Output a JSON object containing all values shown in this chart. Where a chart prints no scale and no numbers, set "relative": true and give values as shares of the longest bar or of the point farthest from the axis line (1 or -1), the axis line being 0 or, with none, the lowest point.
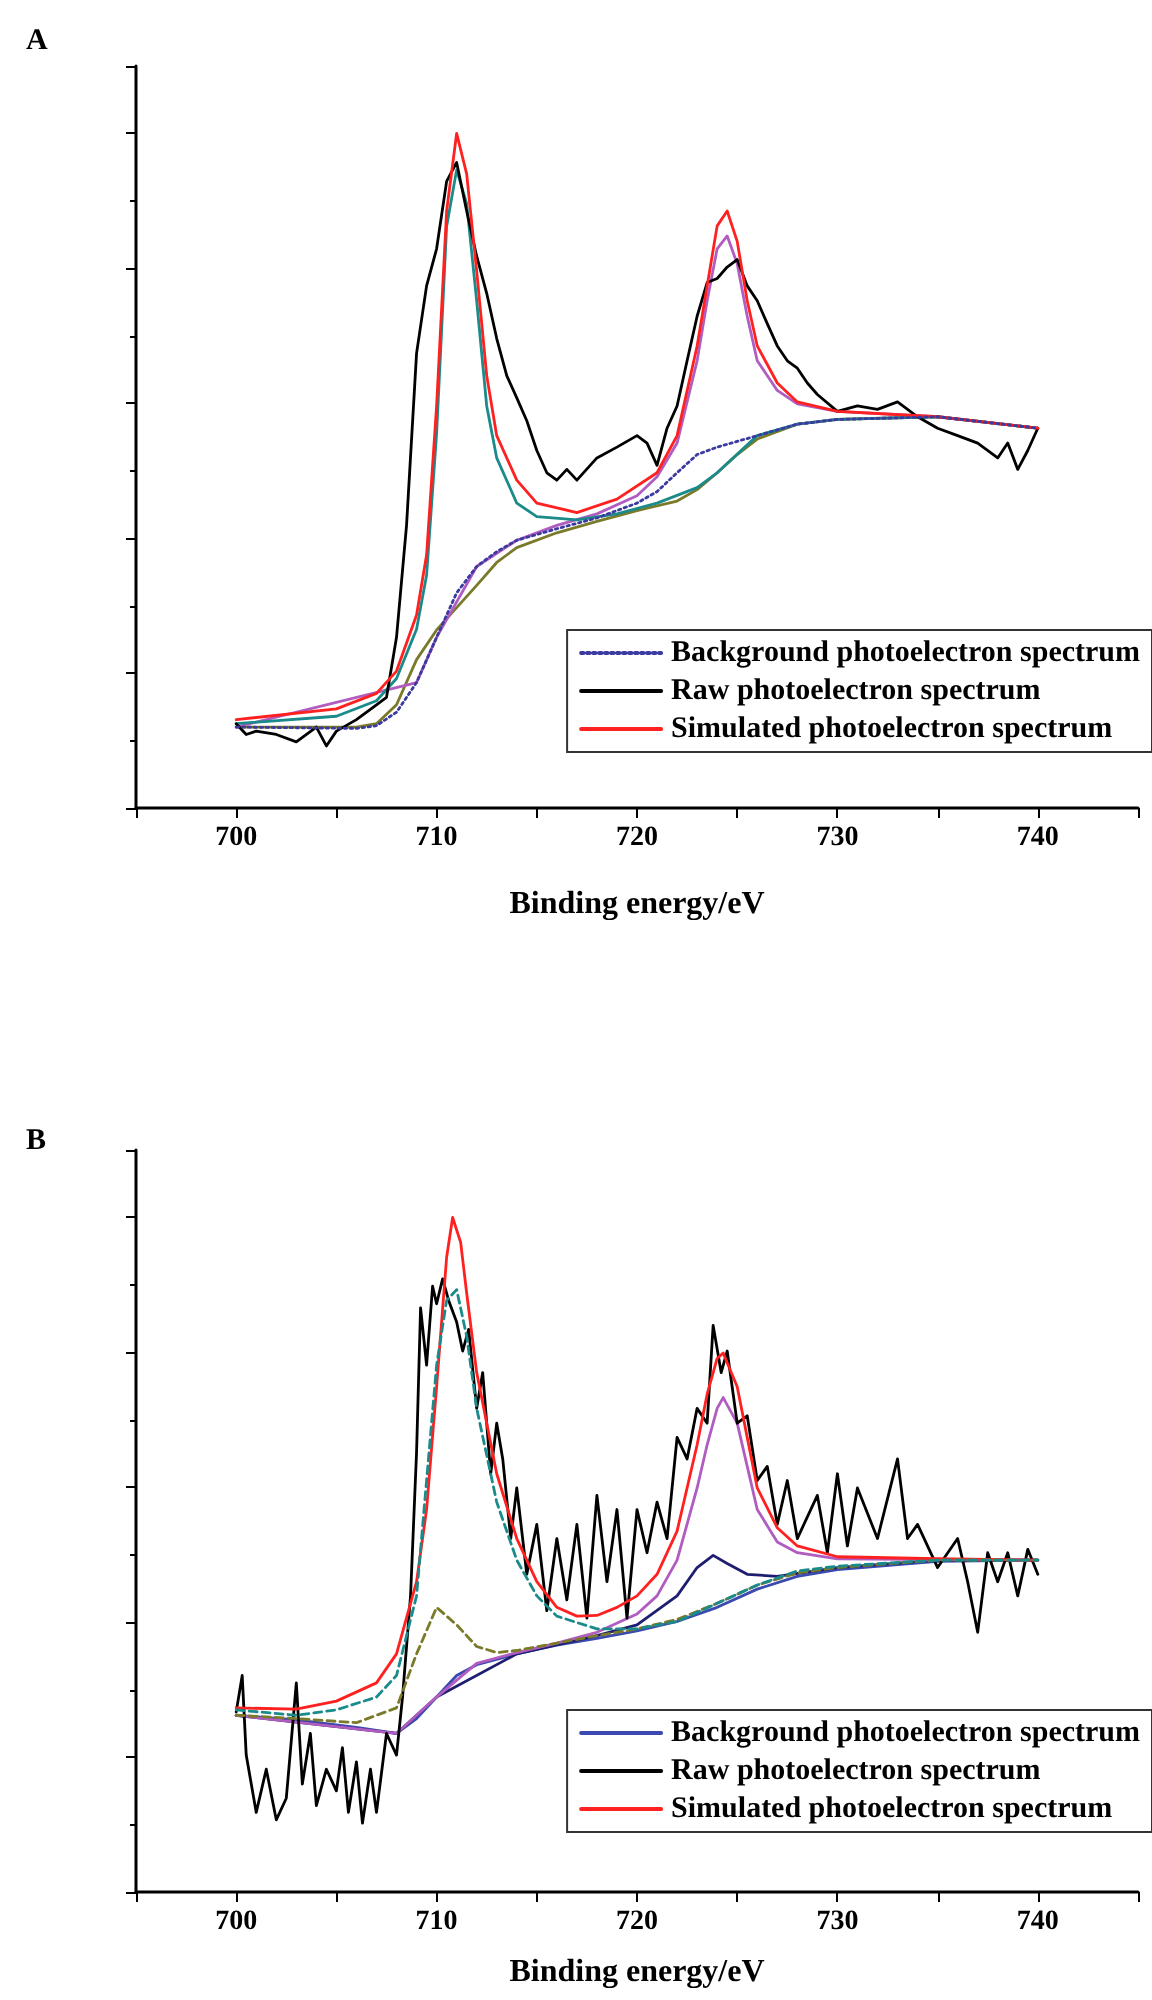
{
  "chart_data": [
    {
      "type": "line",
      "title": "A",
      "xlabel": "Binding energy/eV",
      "relative": true,
      "xlim": [
        695,
        745
      ],
      "xticks": [
        {
          "value": 695,
          "label": null
        },
        700,
        {
          "value": 705,
          "label": null
        },
        710,
        {
          "value": 715,
          "label": null
        },
        720,
        {
          "value": 725,
          "label": null
        },
        730,
        {
          "value": 735,
          "label": null
        },
        740,
        {
          "value": 745,
          "label": null
        }
      ],
      "tick_labels": "x",
      "grid": false,
      "legend": "bottom right",
      "marker": "none",
      "series": [
        {
          "color": "#7a7a2a",
          "x": [
            700,
            706,
            707,
            708,
            709,
            710,
            711,
            712,
            713,
            714,
            716,
            718,
            720,
            722,
            723,
            724,
            725,
            726,
            728,
            730,
            735,
            740
          ],
          "values": [
            0.12,
            0.12,
            0.125,
            0.153,
            0.22,
            0.264,
            0.297,
            0.33,
            0.364,
            0.386,
            0.408,
            0.425,
            0.441,
            0.455,
            0.472,
            0.497,
            0.524,
            0.547,
            0.569,
            0.576,
            0.58,
            0.563
          ]
        },
        {
          "color": "#b05cc0",
          "x": [
            700,
            709,
            710,
            712,
            714,
            716,
            718,
            720,
            721,
            722,
            723,
            723.5,
            724,
            724.5,
            725,
            725.5,
            726,
            727,
            728,
            730,
            735,
            740
          ],
          "values": [
            0.12,
            0.186,
            0.253,
            0.358,
            0.397,
            0.419,
            0.436,
            0.463,
            0.491,
            0.541,
            0.663,
            0.752,
            0.829,
            0.848,
            0.807,
            0.729,
            0.663,
            0.619,
            0.599,
            0.588,
            0.58,
            0.563
          ]
        },
        {
          "color": "#1a8a8a",
          "x": [
            700,
            705,
            707,
            708,
            709,
            709.5,
            710,
            710.5,
            711,
            711.5,
            712,
            712.5,
            713,
            714,
            715,
            717,
            719,
            721,
            723,
            724,
            726,
            728,
            730,
            735,
            740
          ],
          "values": [
            0.125,
            0.136,
            0.159,
            0.192,
            0.265,
            0.345,
            0.555,
            0.862,
            0.946,
            0.896,
            0.752,
            0.596,
            0.519,
            0.452,
            0.432,
            0.427,
            0.436,
            0.452,
            0.475,
            0.497,
            0.552,
            0.569,
            0.576,
            0.58,
            0.563
          ]
        },
        {
          "name": "Background photoelectron spectrum",
          "color": "#3a3aa0",
          "line_style": "dotted",
          "x": [
            700,
            706,
            707,
            708,
            709,
            710,
            711,
            712,
            713,
            714,
            716,
            718,
            720,
            721,
            722,
            723,
            724,
            726,
            728,
            730,
            735,
            740
          ],
          "values": [
            0.12,
            0.118,
            0.122,
            0.142,
            0.186,
            0.253,
            0.319,
            0.358,
            0.38,
            0.397,
            0.414,
            0.43,
            0.452,
            0.469,
            0.497,
            0.524,
            0.535,
            0.552,
            0.569,
            0.576,
            0.58,
            0.563
          ]
        },
        {
          "name": "Raw photoelectron spectrum",
          "color": "#000000",
          "x": [
            700,
            700.5,
            701,
            702,
            703,
            704,
            704.5,
            705,
            706,
            707,
            707.5,
            708,
            708.5,
            709,
            709.5,
            710,
            710.5,
            711,
            711.5,
            712,
            712.5,
            713,
            713.5,
            714,
            714.5,
            715,
            715.5,
            716,
            716.5,
            717,
            718,
            719,
            720,
            720.5,
            721,
            721.5,
            722,
            722.5,
            723,
            723.5,
            724,
            724.5,
            725,
            725.5,
            726,
            726.5,
            727,
            727.5,
            728,
            728.5,
            729,
            730,
            731,
            732,
            733,
            734,
            735,
            736,
            737,
            738,
            738.5,
            739,
            739.5,
            740
          ],
          "values": [
            0.125,
            0.109,
            0.114,
            0.109,
            0.098,
            0.12,
            0.092,
            0.114,
            0.131,
            0.153,
            0.164,
            0.253,
            0.419,
            0.674,
            0.774,
            0.829,
            0.929,
            0.957,
            0.885,
            0.818,
            0.763,
            0.696,
            0.641,
            0.608,
            0.574,
            0.53,
            0.497,
            0.486,
            0.502,
            0.486,
            0.519,
            0.535,
            0.552,
            0.541,
            0.508,
            0.563,
            0.596,
            0.663,
            0.729,
            0.779,
            0.785,
            0.802,
            0.813,
            0.774,
            0.752,
            0.718,
            0.685,
            0.663,
            0.652,
            0.63,
            0.613,
            0.588,
            0.596,
            0.591,
            0.602,
            0.58,
            0.563,
            0.552,
            0.541,
            0.519,
            0.541,
            0.502,
            0.53,
            0.563
          ]
        },
        {
          "name": "Simulated photoelectron spectrum",
          "color": "#ff2020",
          "x": [
            700,
            705,
            707,
            708,
            709,
            709.5,
            710,
            710.5,
            711,
            711.5,
            712,
            712.5,
            713,
            714,
            715,
            717,
            719,
            721,
            722,
            723,
            723.5,
            724,
            724.5,
            725,
            725.5,
            726,
            727,
            728,
            730,
            735,
            740
          ],
          "values": [
            0.131,
            0.147,
            0.17,
            0.203,
            0.286,
            0.375,
            0.596,
            0.885,
            1,
            0.94,
            0.796,
            0.641,
            0.552,
            0.486,
            0.452,
            0.438,
            0.458,
            0.497,
            0.552,
            0.685,
            0.774,
            0.863,
            0.885,
            0.84,
            0.752,
            0.685,
            0.63,
            0.602,
            0.588,
            0.58,
            0.563
          ]
        }
      ]
    },
    {
      "type": "line",
      "title": "B",
      "xlabel": "Binding energy/eV",
      "relative": true,
      "xlim": [
        695,
        745
      ],
      "xticks": [
        {
          "value": 695,
          "label": null
        },
        700,
        {
          "value": 705,
          "label": null
        },
        710,
        {
          "value": 715,
          "label": null
        },
        720,
        {
          "value": 725,
          "label": null
        },
        730,
        {
          "value": 735,
          "label": null
        },
        740,
        {
          "value": 745,
          "label": null
        }
      ],
      "tick_labels": "x",
      "grid": false,
      "legend": "bottom right",
      "marker": "none",
      "series": [
        {
          "color": "#7a7a2a",
          "line_style": "dashed",
          "x": [
            700,
            703,
            706,
            708,
            709,
            710,
            711,
            712,
            713,
            714,
            716,
            718,
            720,
            722,
            724,
            726,
            728,
            730,
            735,
            740
          ],
          "values": [
            0.262,
            0.257,
            0.251,
            0.273,
            0.353,
            0.422,
            0.396,
            0.364,
            0.355,
            0.358,
            0.369,
            0.38,
            0.39,
            0.404,
            0.428,
            0.455,
            0.473,
            0.481,
            0.492,
            0.492
          ]
        },
        {
          "color": "#1a8a8a",
          "line_style": "dashed",
          "x": [
            700,
            703,
            705,
            707,
            708,
            709,
            709.5,
            710,
            710.5,
            711,
            711.5,
            712,
            713,
            714,
            715,
            716,
            718,
            720,
            722,
            724,
            726,
            728,
            730,
            735,
            740
          ],
          "values": [
            0.27,
            0.262,
            0.27,
            0.289,
            0.321,
            0.439,
            0.61,
            0.781,
            0.877,
            0.893,
            0.824,
            0.717,
            0.578,
            0.492,
            0.439,
            0.409,
            0.39,
            0.39,
            0.401,
            0.428,
            0.455,
            0.476,
            0.483,
            0.492,
            0.492
          ]
        },
        {
          "name": "Background photoelectron spectrum",
          "color": "#3a4ab0",
          "x": [
            700,
            703,
            706,
            708,
            709,
            710,
            711,
            712,
            714,
            716,
            718,
            720,
            722,
            724,
            726,
            728,
            730,
            735,
            740
          ],
          "values": [
            0.262,
            0.255,
            0.244,
            0.235,
            0.257,
            0.289,
            0.321,
            0.337,
            0.353,
            0.366,
            0.376,
            0.387,
            0.401,
            0.422,
            0.449,
            0.468,
            0.478,
            0.49,
            0.492
          ]
        },
        {
          "color": "#1e1e70",
          "x": [
            700,
            708,
            710,
            714,
            718,
            720,
            722,
            723,
            723.8,
            724.5,
            725.5,
            727,
            730,
            735,
            740
          ],
          "values": [
            0.262,
            0.235,
            0.289,
            0.353,
            0.38,
            0.396,
            0.439,
            0.481,
            0.499,
            0.487,
            0.471,
            0.468,
            0.481,
            0.492,
            0.492
          ]
        },
        {
          "color": "#b05cc0",
          "x": [
            700,
            708,
            710,
            712,
            714,
            716,
            718,
            720,
            721,
            722,
            723,
            723.5,
            724,
            724.3,
            725,
            725.5,
            726,
            727,
            728,
            730,
            740
          ],
          "values": [
            0.262,
            0.235,
            0.289,
            0.339,
            0.355,
            0.369,
            0.385,
            0.412,
            0.439,
            0.492,
            0.599,
            0.663,
            0.717,
            0.733,
            0.695,
            0.631,
            0.567,
            0.519,
            0.503,
            0.494,
            0.492
          ]
        },
        {
          "name": "Raw photoelectron spectrum",
          "color": "#000000",
          "x": [
            700,
            700.3,
            700.5,
            701,
            701.5,
            702,
            702.5,
            703,
            703.3,
            703.7,
            704,
            704.5,
            705,
            705.3,
            705.6,
            706,
            706.3,
            706.7,
            707,
            707.5,
            708,
            708.3,
            708.7,
            709,
            709.2,
            709.5,
            709.8,
            710,
            710.3,
            710.6,
            711,
            711.3,
            711.6,
            712,
            712.3,
            712.7,
            713,
            713.3,
            713.7,
            714,
            714.5,
            715,
            715.5,
            716,
            716.5,
            717,
            717.5,
            718,
            718.5,
            719,
            719.5,
            720,
            720.5,
            721,
            721.5,
            722,
            722.5,
            723,
            723.5,
            723.8,
            724.2,
            724.5,
            725,
            725.5,
            726,
            726.5,
            727,
            727.5,
            728,
            729,
            729.5,
            730,
            730.5,
            731,
            732,
            733,
            733.5,
            734,
            735,
            736,
            736.5,
            737,
            737.5,
            738,
            738.5,
            739,
            739.5,
            740
          ],
          "values": [
            0.267,
            0.321,
            0.203,
            0.118,
            0.182,
            0.107,
            0.139,
            0.31,
            0.16,
            0.235,
            0.128,
            0.182,
            0.15,
            0.214,
            0.118,
            0.193,
            0.102,
            0.182,
            0.118,
            0.235,
            0.203,
            0.289,
            0.439,
            0.652,
            0.866,
            0.781,
            0.898,
            0.872,
            0.909,
            0.877,
            0.845,
            0.802,
            0.834,
            0.717,
            0.77,
            0.62,
            0.695,
            0.642,
            0.524,
            0.599,
            0.471,
            0.545,
            0.417,
            0.524,
            0.433,
            0.545,
            0.406,
            0.588,
            0.46,
            0.567,
            0.406,
            0.567,
            0.503,
            0.578,
            0.524,
            0.674,
            0.642,
            0.717,
            0.695,
            0.84,
            0.77,
            0.802,
            0.695,
            0.706,
            0.61,
            0.631,
            0.545,
            0.61,
            0.524,
            0.588,
            0.503,
            0.62,
            0.513,
            0.599,
            0.524,
            0.642,
            0.524,
            0.545,
            0.481,
            0.524,
            0.46,
            0.385,
            0.503,
            0.46,
            0.503,
            0.439,
            0.508,
            0.471
          ]
        },
        {
          "name": "Simulated photoelectron spectrum",
          "color": "#ff2020",
          "x": [
            700,
            703,
            705,
            707,
            708,
            709,
            709.5,
            710,
            710.5,
            710.8,
            711.2,
            711.5,
            712,
            713,
            714,
            715,
            716,
            717,
            718,
            719,
            720,
            721,
            722,
            723,
            723.5,
            724,
            724.3,
            725,
            725.5,
            726,
            727,
            728,
            730,
            735,
            740
          ],
          "values": [
            0.273,
            0.271,
            0.283,
            0.31,
            0.353,
            0.46,
            0.567,
            0.749,
            0.941,
            1,
            0.963,
            0.888,
            0.77,
            0.62,
            0.524,
            0.46,
            0.422,
            0.409,
            0.41,
            0.422,
            0.439,
            0.471,
            0.535,
            0.663,
            0.738,
            0.791,
            0.799,
            0.749,
            0.674,
            0.599,
            0.54,
            0.513,
            0.497,
            0.494,
            0.492
          ]
        }
      ]
    }
  ]
}
